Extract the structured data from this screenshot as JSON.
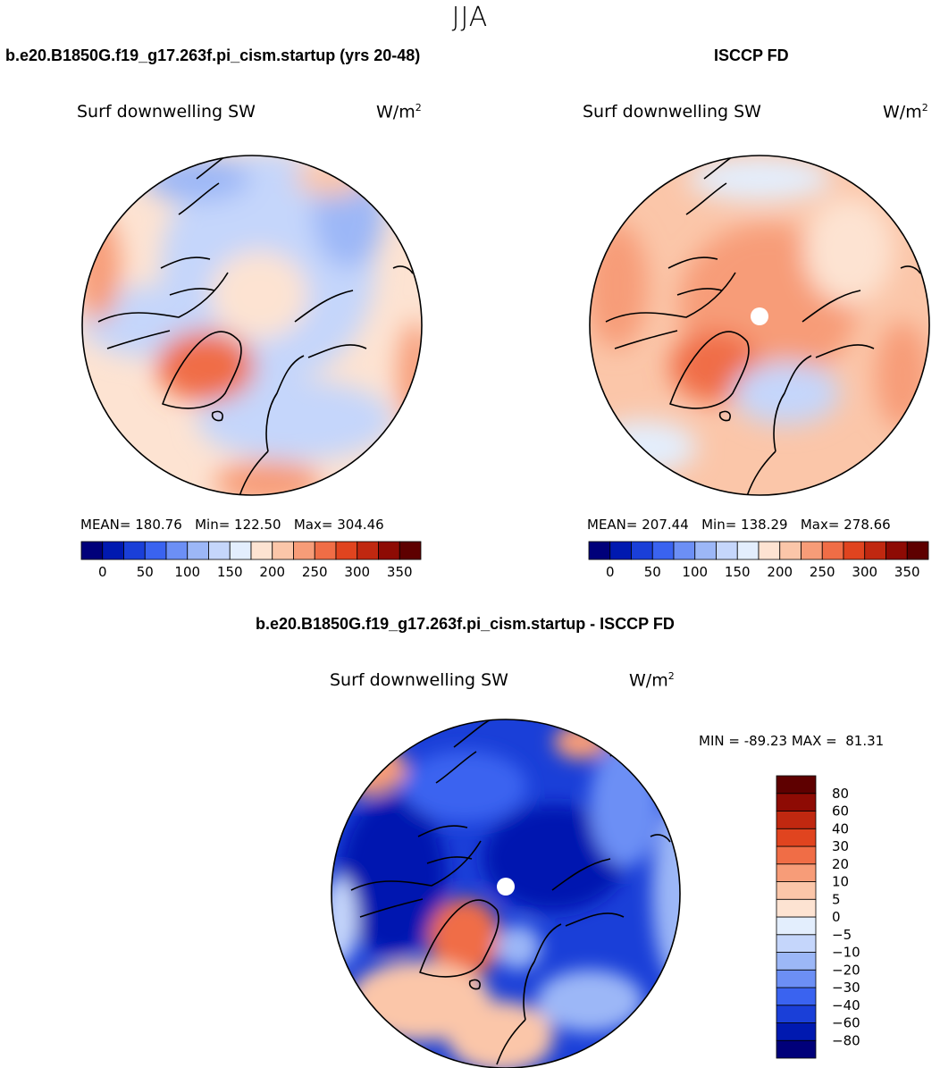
{
  "season": "JJA",
  "units_base": "W/m",
  "units_exp": "2",
  "colors": {
    "ocean_blue_dark": "#0b1f9c",
    "map_line": "#000000",
    "pole": "#ffffff"
  },
  "chart_data": [
    {
      "type": "heatmap",
      "title": "b.e20.B1850G.f19_g17.263f.pi_cism.startup (yrs 20-48)",
      "variable": "Surf downwelling SW",
      "units": "W/m2",
      "projection": "north polar stereographic",
      "stats": {
        "mean_label": "MEAN=",
        "mean": "180.76",
        "min_label": "Min=",
        "min": "122.50",
        "max_label": "Max=",
        "max": "304.46"
      },
      "colorbar": {
        "orientation": "horizontal",
        "levels": [
          0,
          25,
          50,
          75,
          100,
          125,
          150,
          175,
          200,
          225,
          250,
          275,
          300,
          325,
          350
        ],
        "tick_labels": [
          "0",
          "50",
          "100",
          "150",
          "200",
          "250",
          "300",
          "350"
        ],
        "colors": [
          "#00007a",
          "#0019b0",
          "#1a3fd8",
          "#3a63f0",
          "#6c8ff5",
          "#9cb7f7",
          "#c5d6fb",
          "#e3eefd",
          "#fde3d2",
          "#fbc6a9",
          "#f79c78",
          "#f06d46",
          "#e0441f",
          "#c02810",
          "#8e0b04",
          "#5e0000"
        ]
      }
    },
    {
      "type": "heatmap",
      "title": "ISCCP FD",
      "variable": "Surf downwelling SW",
      "units": "W/m2",
      "projection": "north polar stereographic",
      "stats": {
        "mean_label": "MEAN=",
        "mean": "207.44",
        "min_label": "Min=",
        "min": "138.29",
        "max_label": "Max=",
        "max": "278.66"
      },
      "colorbar": {
        "orientation": "horizontal",
        "levels": [
          0,
          25,
          50,
          75,
          100,
          125,
          150,
          175,
          200,
          225,
          250,
          275,
          300,
          325,
          350
        ],
        "tick_labels": [
          "0",
          "50",
          "100",
          "150",
          "200",
          "250",
          "300",
          "350"
        ],
        "colors": [
          "#00007a",
          "#0019b0",
          "#1a3fd8",
          "#3a63f0",
          "#6c8ff5",
          "#9cb7f7",
          "#c5d6fb",
          "#e3eefd",
          "#fde3d2",
          "#fbc6a9",
          "#f79c78",
          "#f06d46",
          "#e0441f",
          "#c02810",
          "#8e0b04",
          "#5e0000"
        ]
      }
    },
    {
      "type": "heatmap",
      "title": "b.e20.B1850G.f19_g17.263f.pi_cism.startup - ISCCP FD",
      "variable": "Surf downwelling SW",
      "units": "W/m2",
      "projection": "north polar stereographic",
      "stats": {
        "min_label": "MIN =",
        "min": "-89.23",
        "max_label": "MAX =",
        "max": "81.31"
      },
      "colorbar": {
        "orientation": "vertical",
        "levels": [
          -80,
          -60,
          -40,
          -30,
          -20,
          -10,
          -5,
          0,
          5,
          10,
          20,
          30,
          40,
          60,
          80
        ],
        "tick_labels": [
          "80",
          "60",
          "40",
          "30",
          "20",
          "10",
          "5",
          "0",
          "−5",
          "−10",
          "−20",
          "−30",
          "−40",
          "−60",
          "−80"
        ],
        "colors": [
          "#00007a",
          "#0019b0",
          "#1a3fd8",
          "#3a63f0",
          "#6c8ff5",
          "#9cb7f7",
          "#c5d6fb",
          "#e3eefd",
          "#fde3d2",
          "#fbc6a9",
          "#f79c78",
          "#f06d46",
          "#e0441f",
          "#c02810",
          "#8e0b04",
          "#5e0000"
        ]
      }
    }
  ]
}
